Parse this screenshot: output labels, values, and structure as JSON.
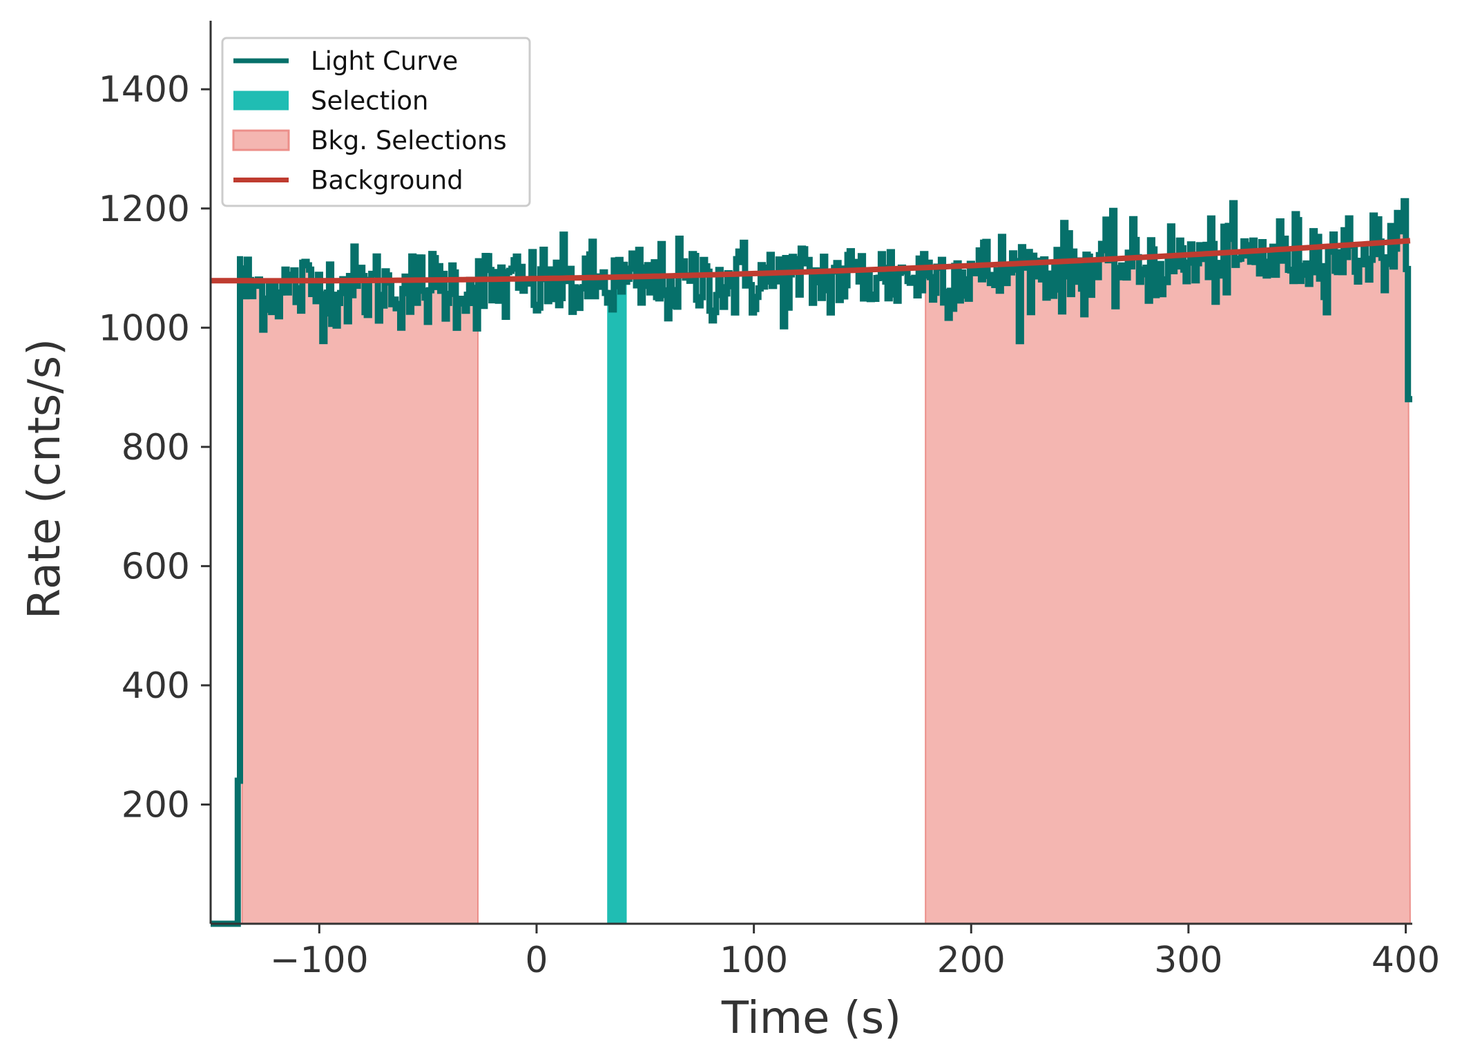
{
  "chart_data": {
    "type": "line",
    "xlabel": "Time (s)",
    "ylabel": "Rate (cnts/s)",
    "xlim": [
      -150,
      403
    ],
    "ylim": [
      0,
      1515
    ],
    "xticks": [
      -100,
      0,
      100,
      200,
      300,
      400
    ],
    "xtick_labels": [
      "−100",
      "0",
      "100",
      "200",
      "300",
      "400"
    ],
    "yticks": [
      200,
      400,
      600,
      800,
      1000,
      1200,
      1400
    ],
    "ytick_labels": [
      "200",
      "400",
      "600",
      "800",
      "1000",
      "1200",
      "1400"
    ],
    "legend": {
      "placement": "top-left",
      "entries": [
        {
          "label": "Light Curve",
          "kind": "line",
          "color": "#06706a"
        },
        {
          "label": "Selection",
          "kind": "patch",
          "color": "#20bdb3"
        },
        {
          "label": "Bkg. Selections",
          "kind": "patch",
          "color": "#f4b6b1",
          "edge": "#ec8f8a"
        },
        {
          "label": "Background",
          "kind": "line",
          "color": "#bf3c30"
        }
      ]
    },
    "series": [
      {
        "name": "Light Curve",
        "color": "#06706a",
        "t_start": -150,
        "bin_width": 1.024,
        "pre_values": [
          [
            -150,
            0
          ],
          [
            -137.5,
            0
          ],
          [
            -137.5,
            240
          ],
          [
            -136.5,
            240
          ],
          [
            -136.5,
            1120
          ]
        ],
        "post_values": [
          [
            401,
            880
          ],
          [
            403,
            880
          ]
        ],
        "end_time": 401
      },
      {
        "name": "Selection",
        "color": "#20bdb3",
        "span": [
          32.5,
          41.5
        ]
      },
      {
        "name": "Bkg. Selections",
        "color": "#f4b6b1",
        "spans": [
          [
            -135.5,
            -27
          ],
          [
            179,
            402
          ]
        ]
      },
      {
        "name": "Background",
        "color": "#bf3c30",
        "poly_coeffs": [
          1082.4,
          0.0598,
          0.000244
        ]
      }
    ]
  }
}
